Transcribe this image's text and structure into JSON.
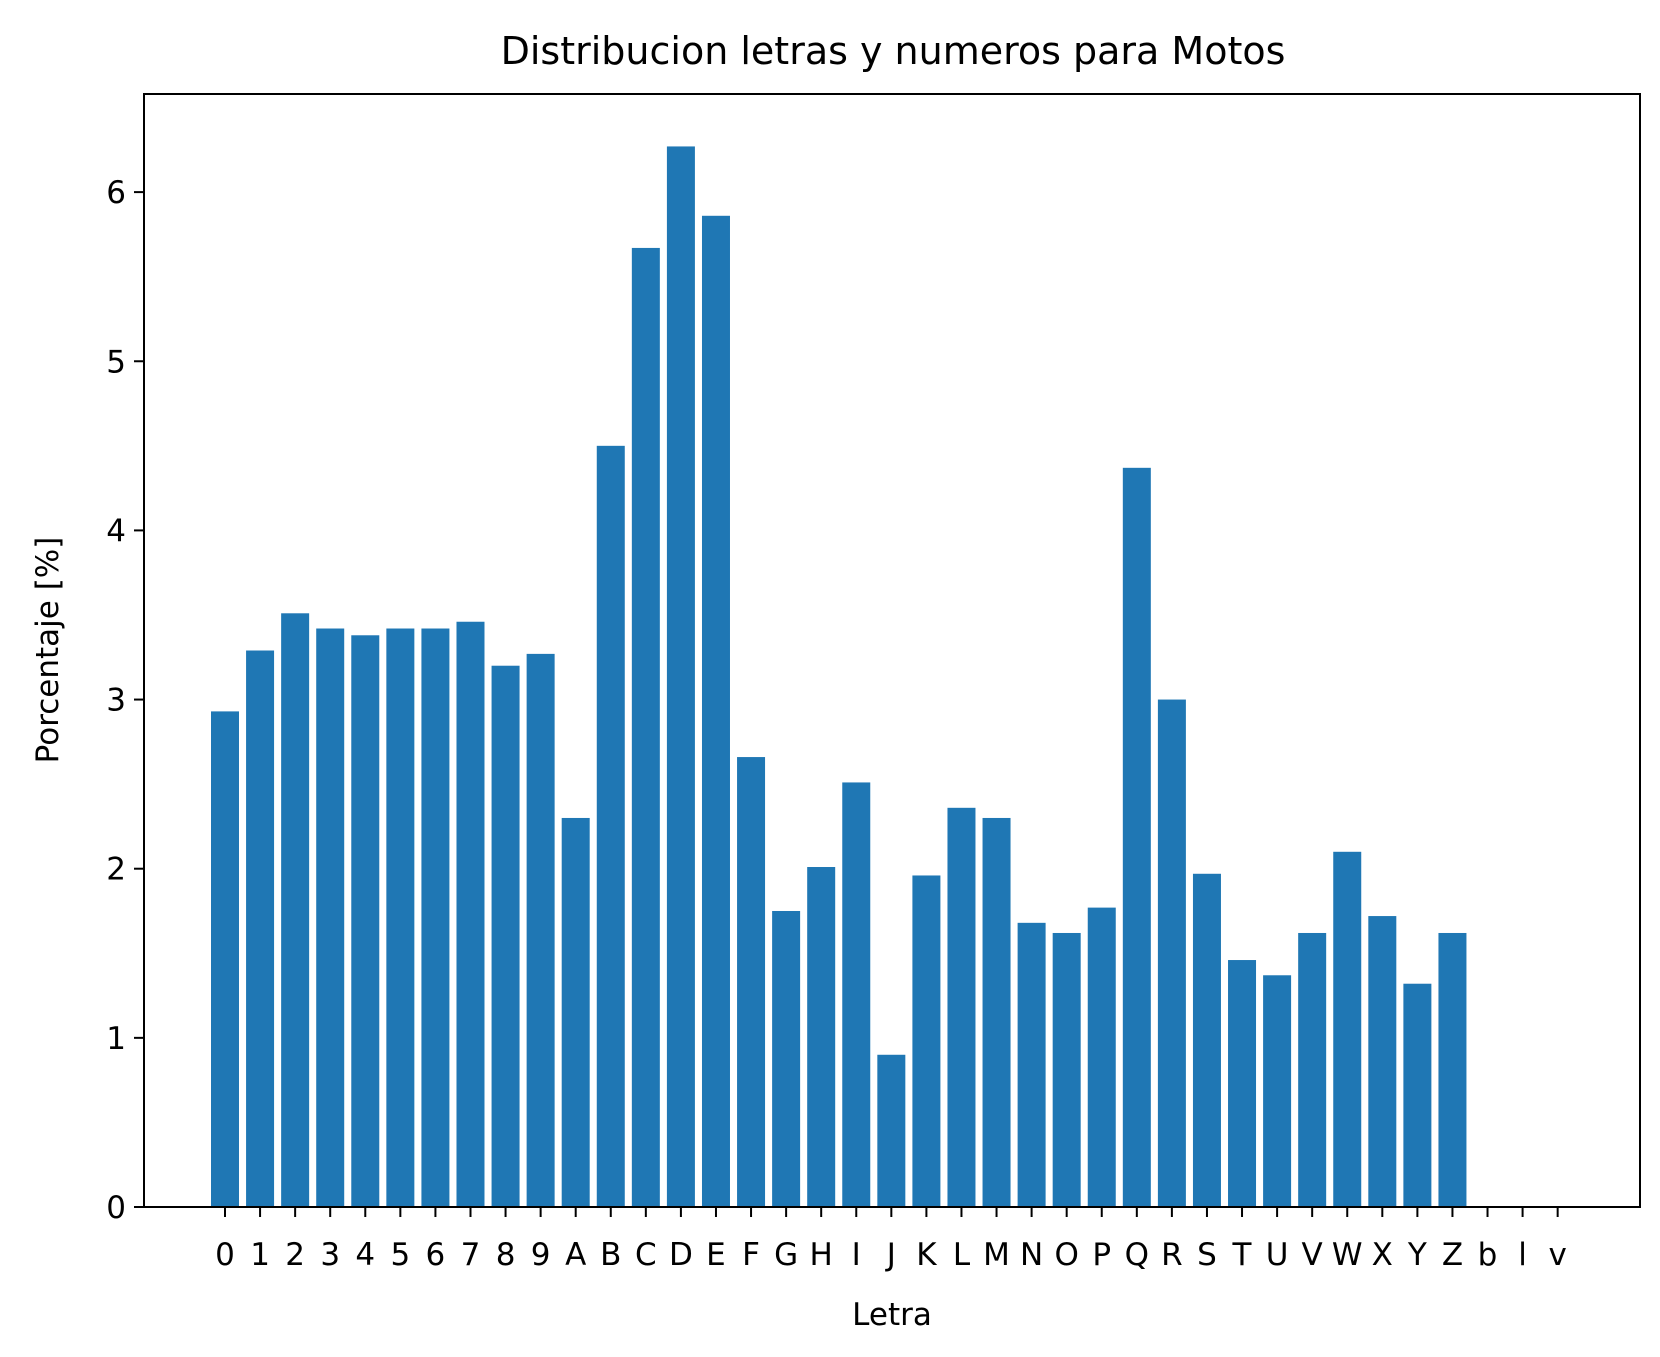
{
  "chart_data": {
    "type": "bar",
    "title": "Distribucion letras y numeros para Motos",
    "xlabel": "Letra",
    "ylabel": "Porcentaje [%]",
    "ylim": [
      0,
      6.58
    ],
    "yticks": [
      "0",
      "1",
      "2",
      "3",
      "4",
      "5",
      "6"
    ],
    "grid": false,
    "bar_color": "#1f77b4",
    "categories": [
      "0",
      "1",
      "2",
      "3",
      "4",
      "5",
      "6",
      "7",
      "8",
      "9",
      "A",
      "B",
      "C",
      "D",
      "E",
      "F",
      "G",
      "H",
      "I",
      "J",
      "K",
      "L",
      "M",
      "N",
      "O",
      "P",
      "Q",
      "R",
      "S",
      "T",
      "U",
      "V",
      "W",
      "X",
      "Y",
      "Z",
      "b",
      "l",
      "v"
    ],
    "values": [
      2.93,
      3.29,
      3.51,
      3.42,
      3.38,
      3.42,
      3.42,
      3.46,
      3.2,
      3.27,
      2.3,
      4.5,
      5.67,
      6.27,
      5.86,
      2.66,
      1.75,
      2.01,
      2.51,
      0.9,
      1.96,
      2.36,
      2.3,
      1.68,
      1.62,
      1.77,
      4.37,
      3.0,
      1.97,
      1.46,
      1.37,
      1.62,
      2.1,
      1.72,
      1.32,
      1.62,
      0.0,
      0.0,
      0.0
    ]
  }
}
